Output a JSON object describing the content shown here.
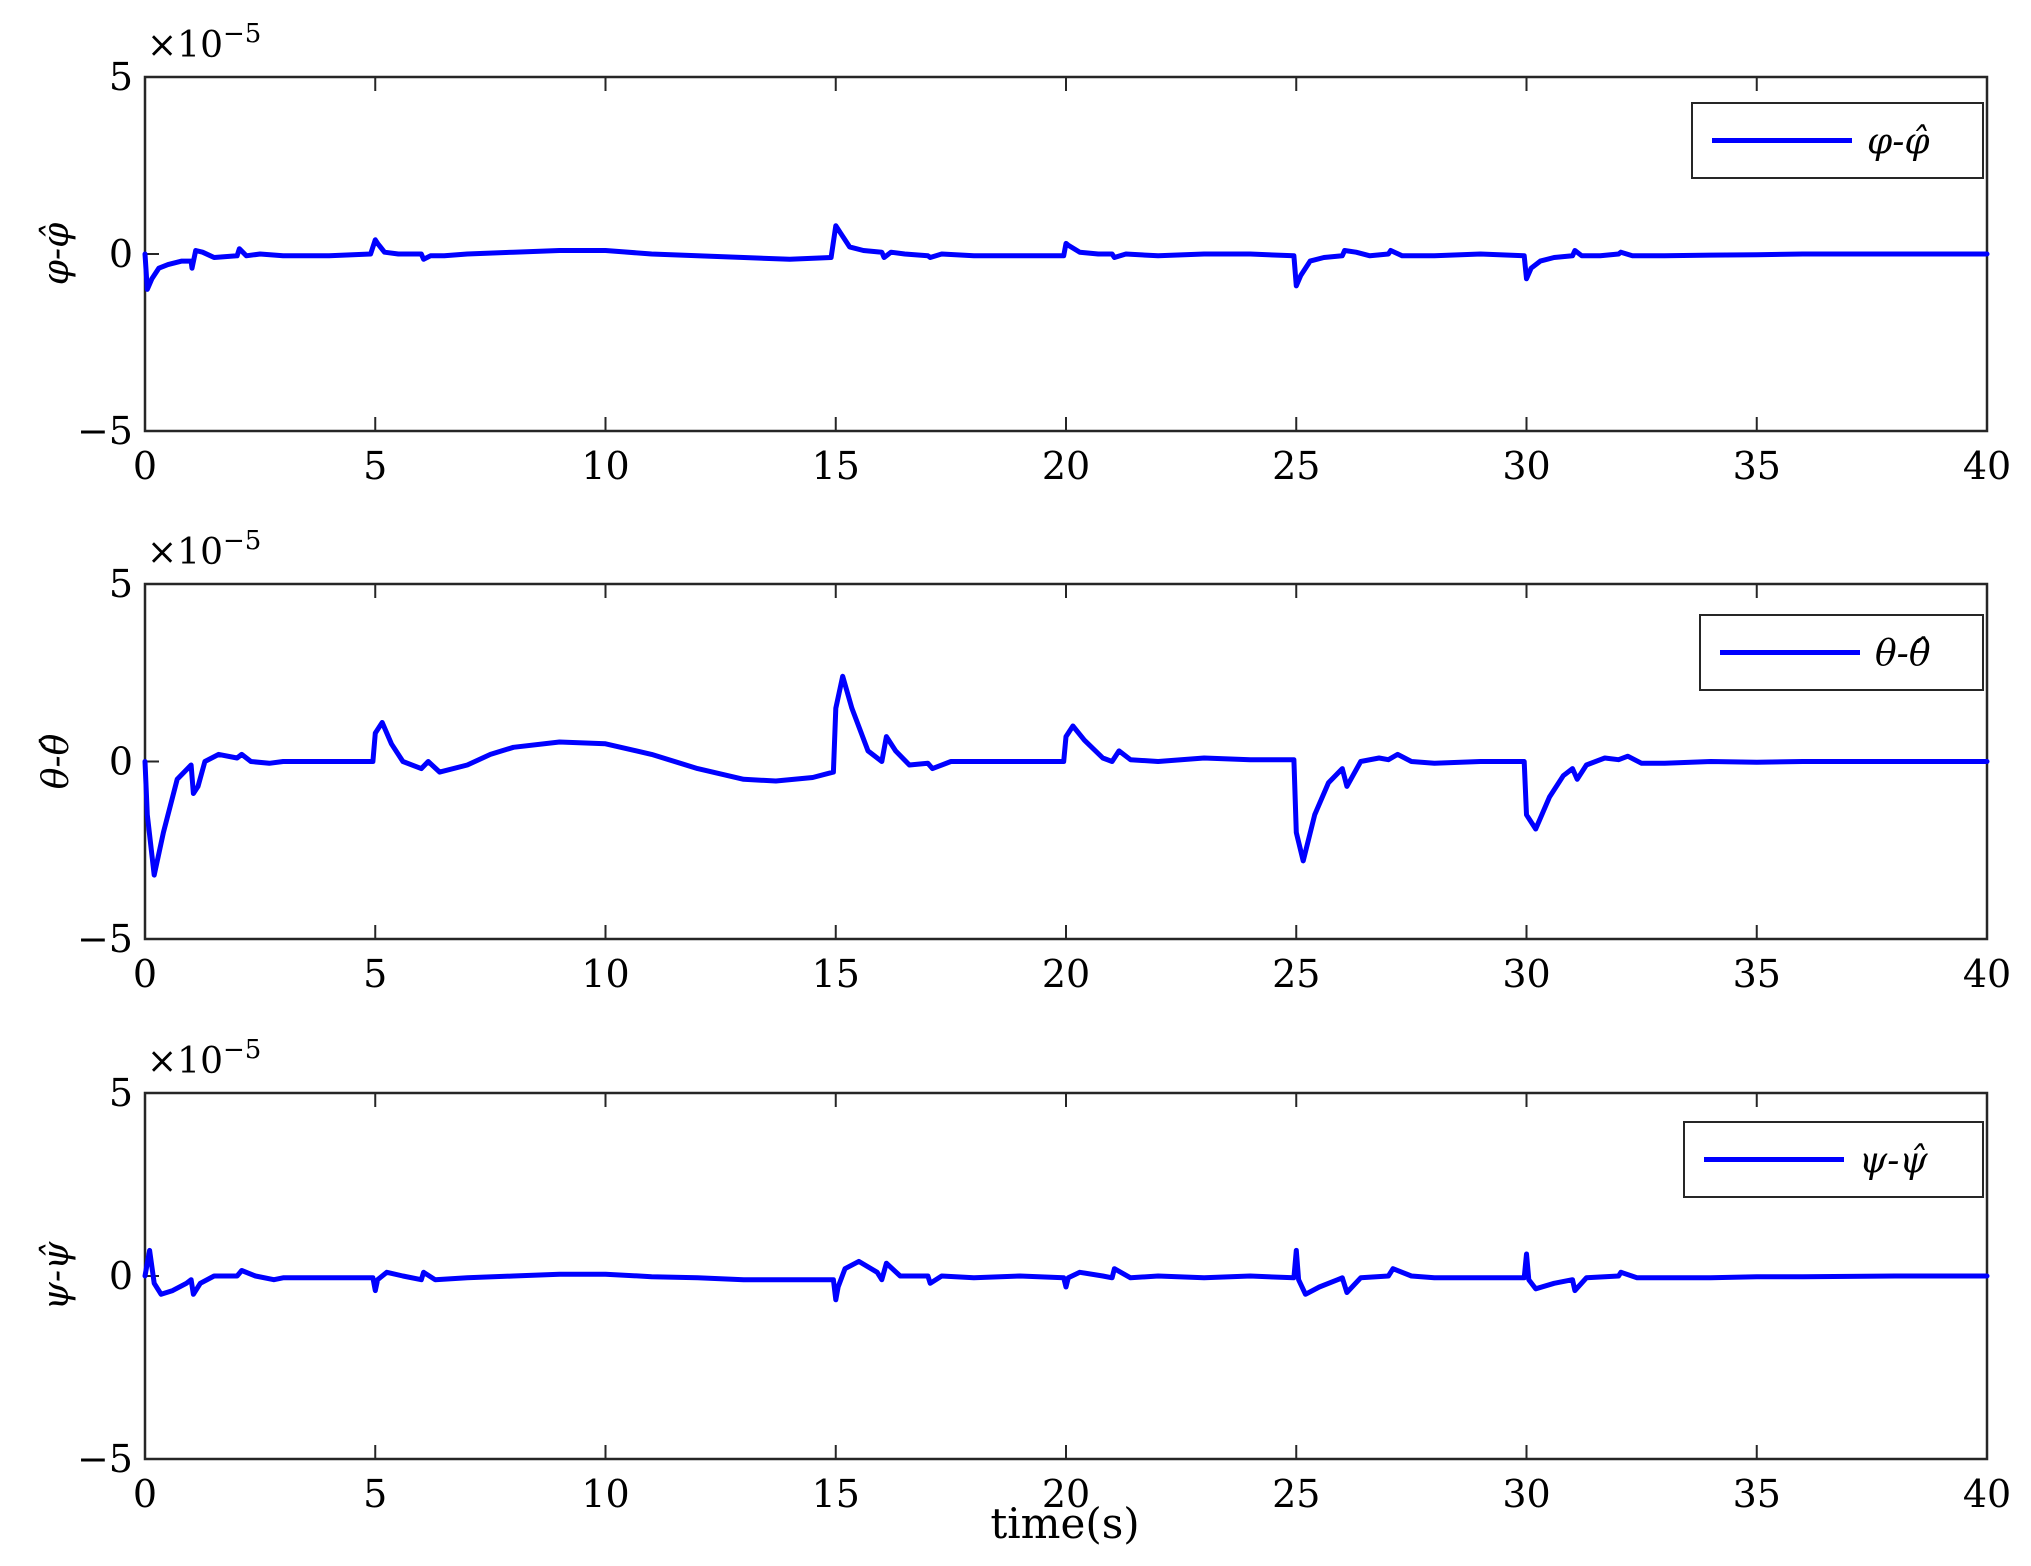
{
  "figure": {
    "xlabel": "time(s)"
  },
  "chart_data": [
    {
      "type": "line",
      "ylabel": "φ-φ̂",
      "exponent_label": "×10",
      "exponent_power": "−5",
      "xlim": [
        0,
        40
      ],
      "ylim": [
        -5,
        5
      ],
      "xticks": [
        "0",
        "5",
        "10",
        "15",
        "20",
        "25",
        "30",
        "35",
        "40"
      ],
      "yticks": [
        "−5",
        "0",
        "5"
      ],
      "legend_position": "top-right",
      "color": "#0000ff",
      "series": [
        {
          "name": "φ-φ̂",
          "x": [
            0,
            0.05,
            0.15,
            0.3,
            0.5,
            0.8,
            1.0,
            1.02,
            1.1,
            1.25,
            1.5,
            2.0,
            2.05,
            2.2,
            2.5,
            3.0,
            4.0,
            4.9,
            5.0,
            5.05,
            5.2,
            5.5,
            6.0,
            6.05,
            6.2,
            6.5,
            7.0,
            8.0,
            9.0,
            10.0,
            11.0,
            12.0,
            13.0,
            14.0,
            14.9,
            15.0,
            15.1,
            15.3,
            15.6,
            16.0,
            16.05,
            16.2,
            16.5,
            17.0,
            17.05,
            17.3,
            18.0,
            19.0,
            19.95,
            20.0,
            20.05,
            20.3,
            20.7,
            21.0,
            21.05,
            21.3,
            22.0,
            23.0,
            24.0,
            24.95,
            25.0,
            25.1,
            25.3,
            25.6,
            26.0,
            26.05,
            26.3,
            26.6,
            27.0,
            27.05,
            27.3,
            28.0,
            29.0,
            29.95,
            30.0,
            30.1,
            30.3,
            30.6,
            31.0,
            31.05,
            31.2,
            31.6,
            32.0,
            32.05,
            32.3,
            33.0,
            34.0,
            35.0,
            36.0,
            38.0,
            40.0
          ],
          "y": [
            0.0,
            -1.0,
            -0.7,
            -0.4,
            -0.3,
            -0.2,
            -0.2,
            -0.4,
            0.1,
            0.05,
            -0.1,
            -0.05,
            0.15,
            -0.05,
            0.0,
            -0.05,
            -0.05,
            0.0,
            0.4,
            0.3,
            0.05,
            0.0,
            0.0,
            -0.15,
            -0.05,
            -0.05,
            0.0,
            0.05,
            0.1,
            0.1,
            0.0,
            -0.05,
            -0.1,
            -0.15,
            -0.1,
            0.8,
            0.6,
            0.2,
            0.1,
            0.05,
            -0.1,
            0.05,
            0.0,
            -0.05,
            -0.1,
            0.0,
            -0.05,
            -0.05,
            -0.05,
            0.3,
            0.25,
            0.05,
            0.0,
            0.0,
            -0.1,
            0.0,
            -0.05,
            0.0,
            0.0,
            -0.05,
            -0.9,
            -0.6,
            -0.2,
            -0.1,
            -0.05,
            0.1,
            0.05,
            -0.05,
            0.0,
            0.1,
            -0.05,
            -0.05,
            0.0,
            -0.05,
            -0.7,
            -0.4,
            -0.2,
            -0.1,
            -0.05,
            0.1,
            -0.05,
            -0.05,
            0.0,
            0.05,
            -0.05,
            -0.05,
            -0.03,
            -0.02,
            0.0,
            0.0,
            0.0
          ]
        }
      ]
    },
    {
      "type": "line",
      "ylabel": "θ-θ̂",
      "exponent_label": "×10",
      "exponent_power": "−5",
      "xlim": [
        0,
        40
      ],
      "ylim": [
        -5,
        5
      ],
      "xticks": [
        "0",
        "5",
        "10",
        "15",
        "20",
        "25",
        "30",
        "35",
        "40"
      ],
      "yticks": [
        "−5",
        "0",
        "5"
      ],
      "legend_position": "top-right",
      "color": "#0000ff",
      "series": [
        {
          "name": "θ-θ̂",
          "x": [
            0,
            0.05,
            0.2,
            0.4,
            0.7,
            1.0,
            1.05,
            1.15,
            1.3,
            1.6,
            2.0,
            2.1,
            2.3,
            2.7,
            3.0,
            4.0,
            4.95,
            5.0,
            5.15,
            5.35,
            5.6,
            6.0,
            6.15,
            6.4,
            7.0,
            7.5,
            8.0,
            9.0,
            10.0,
            11.0,
            12.0,
            13.0,
            13.7,
            14.5,
            14.95,
            15.0,
            15.15,
            15.35,
            15.7,
            16.0,
            16.1,
            16.3,
            16.6,
            17.0,
            17.1,
            17.5,
            18.0,
            19.0,
            19.95,
            20.0,
            20.15,
            20.4,
            20.8,
            21.0,
            21.15,
            21.4,
            22.0,
            23.0,
            24.0,
            24.95,
            25.0,
            25.15,
            25.4,
            25.7,
            26.0,
            26.1,
            26.4,
            26.8,
            27.0,
            27.2,
            27.5,
            28.0,
            29.0,
            29.95,
            30.0,
            30.2,
            30.5,
            30.8,
            31.0,
            31.1,
            31.3,
            31.7,
            32.0,
            32.2,
            32.5,
            33.0,
            34.0,
            35.0,
            36.0,
            38.0,
            40.0
          ],
          "y": [
            0.0,
            -1.5,
            -3.2,
            -2.0,
            -0.5,
            -0.1,
            -0.9,
            -0.7,
            0.0,
            0.2,
            0.1,
            0.2,
            0.0,
            -0.05,
            0.0,
            0.0,
            0.0,
            0.8,
            1.1,
            0.5,
            0.0,
            -0.2,
            0.0,
            -0.3,
            -0.1,
            0.2,
            0.4,
            0.55,
            0.5,
            0.2,
            -0.2,
            -0.5,
            -0.55,
            -0.45,
            -0.3,
            1.5,
            2.4,
            1.5,
            0.3,
            0.0,
            0.7,
            0.3,
            -0.1,
            -0.05,
            -0.2,
            0.0,
            0.0,
            0.0,
            0.0,
            0.7,
            1.0,
            0.6,
            0.1,
            0.0,
            0.3,
            0.05,
            0.0,
            0.1,
            0.05,
            0.05,
            -2.0,
            -2.8,
            -1.5,
            -0.6,
            -0.2,
            -0.7,
            0.0,
            0.1,
            0.05,
            0.2,
            0.0,
            -0.05,
            0.0,
            0.0,
            -1.5,
            -1.9,
            -1.0,
            -0.4,
            -0.2,
            -0.5,
            -0.1,
            0.1,
            0.05,
            0.15,
            -0.05,
            -0.05,
            0.0,
            -0.02,
            0.0,
            0.0,
            0.0
          ]
        }
      ]
    },
    {
      "type": "line",
      "ylabel": "ψ-ψ̂",
      "exponent_label": "×10",
      "exponent_power": "−5",
      "xlim": [
        0,
        40
      ],
      "ylim": [
        -5,
        5
      ],
      "xticks": [
        "0",
        "5",
        "10",
        "15",
        "20",
        "25",
        "30",
        "35",
        "40"
      ],
      "yticks": [
        "−5",
        "0",
        "5"
      ],
      "legend_position": "top-right",
      "color": "#0000ff",
      "series": [
        {
          "name": "ψ-ψ̂",
          "x": [
            0,
            0.1,
            0.2,
            0.35,
            0.6,
            0.9,
            1.0,
            1.05,
            1.2,
            1.5,
            2.0,
            2.1,
            2.4,
            2.8,
            3.0,
            4.0,
            4.95,
            5.0,
            5.05,
            5.25,
            5.6,
            6.0,
            6.05,
            6.3,
            7.0,
            8.0,
            9.0,
            10.0,
            11.0,
            12.0,
            13.0,
            14.0,
            14.95,
            15.0,
            15.05,
            15.2,
            15.5,
            15.9,
            16.0,
            16.1,
            16.4,
            17.0,
            17.05,
            17.3,
            18.0,
            19.0,
            19.95,
            20.0,
            20.05,
            20.3,
            20.8,
            21.0,
            21.05,
            21.4,
            22.0,
            23.0,
            24.0,
            24.95,
            25.0,
            25.05,
            25.2,
            25.5,
            25.9,
            26.0,
            26.1,
            26.4,
            27.0,
            27.1,
            27.5,
            28.0,
            29.0,
            29.95,
            30.0,
            30.05,
            30.2,
            30.6,
            31.0,
            31.05,
            31.3,
            32.0,
            32.05,
            32.4,
            33.0,
            34.0,
            35.0,
            36.0,
            38.0,
            40.0
          ],
          "y": [
            0.0,
            0.7,
            -0.2,
            -0.5,
            -0.4,
            -0.2,
            -0.1,
            -0.5,
            -0.2,
            0.0,
            0.0,
            0.15,
            0.0,
            -0.1,
            -0.05,
            -0.05,
            -0.05,
            -0.4,
            -0.1,
            0.1,
            0.0,
            -0.1,
            0.1,
            -0.1,
            -0.05,
            0.0,
            0.05,
            0.05,
            -0.02,
            -0.05,
            -0.1,
            -0.1,
            -0.1,
            -0.65,
            -0.3,
            0.2,
            0.4,
            0.1,
            -0.1,
            0.35,
            0.0,
            0.0,
            -0.2,
            0.0,
            -0.05,
            0.0,
            -0.05,
            -0.3,
            -0.05,
            0.1,
            0.0,
            -0.05,
            0.2,
            -0.05,
            0.0,
            -0.05,
            0.0,
            -0.05,
            0.7,
            -0.1,
            -0.5,
            -0.3,
            -0.1,
            -0.05,
            -0.45,
            -0.05,
            0.0,
            0.2,
            0.0,
            -0.05,
            -0.05,
            -0.05,
            0.6,
            -0.1,
            -0.35,
            -0.2,
            -0.1,
            -0.4,
            -0.05,
            0.0,
            0.1,
            -0.05,
            -0.05,
            -0.05,
            -0.02,
            -0.02,
            0.0,
            0.0
          ]
        }
      ]
    }
  ]
}
